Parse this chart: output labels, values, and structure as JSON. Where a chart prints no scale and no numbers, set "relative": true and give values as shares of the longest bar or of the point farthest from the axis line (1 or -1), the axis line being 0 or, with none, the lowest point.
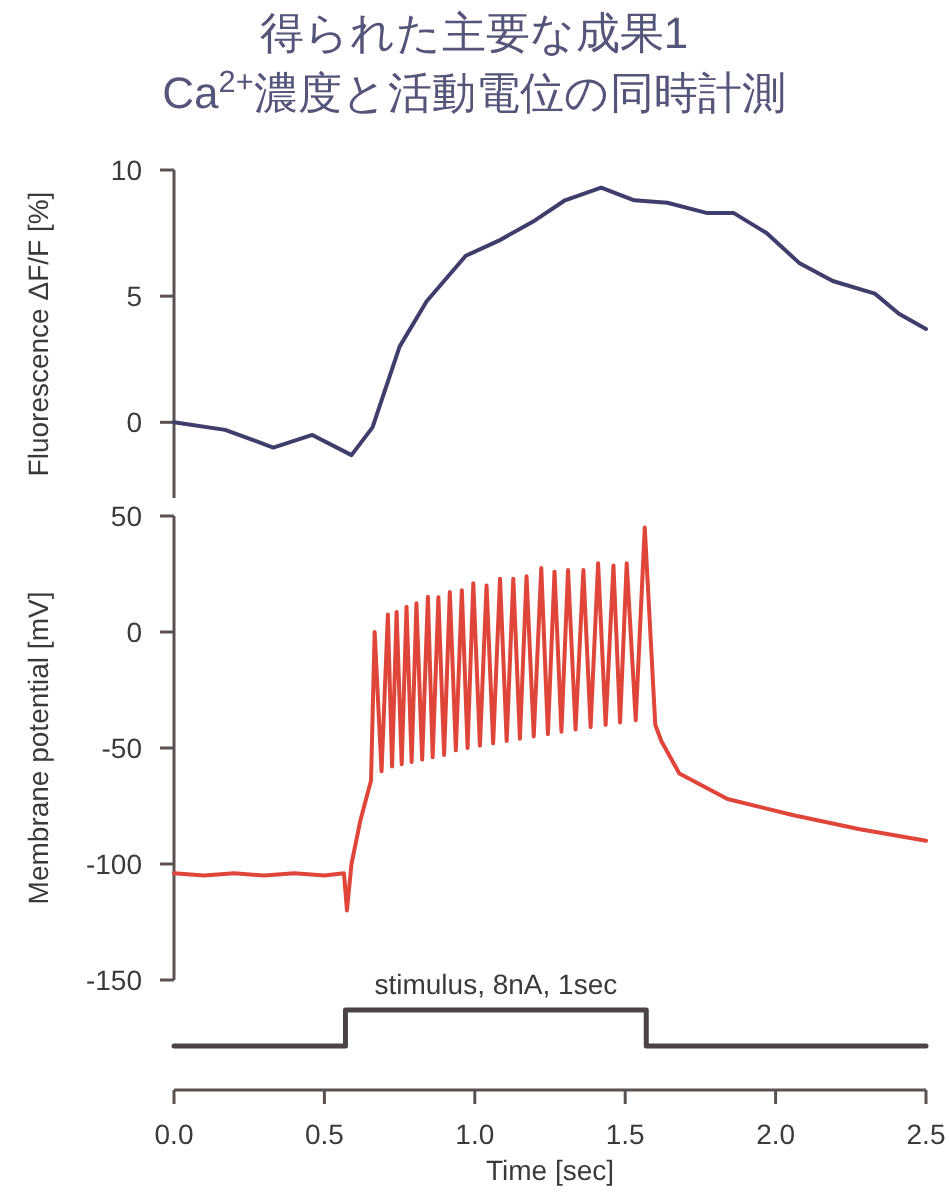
{
  "chart_data": [
    {
      "type": "line",
      "title": "得られた主要な成果1",
      "subtitle": "Ca$^{2+}$濃度と活動電位の同時計測",
      "ylabel": "Fluorescence ΔF/F [%]",
      "xlim": [
        0,
        2.5
      ],
      "ylim": [
        -3,
        10
      ],
      "yticks": [
        0,
        5,
        10
      ],
      "tick_labels": "y",
      "series": [
        {
          "color": "#3f3d6b",
          "x": [
            0,
            0.17,
            0.33,
            0.46,
            0.59,
            0.66,
            0.75,
            0.84,
            0.97,
            1.08,
            1.2,
            1.3,
            1.42,
            1.53,
            1.64,
            1.77,
            1.86,
            1.97,
            2.08,
            2.19,
            2.33,
            2.41,
            2.5
          ],
          "values": [
            0,
            -0.3,
            -1.0,
            -0.5,
            -1.3,
            -0.2,
            3.0,
            4.8,
            6.6,
            7.2,
            8.0,
            8.8,
            9.3,
            8.8,
            8.7,
            8.3,
            8.3,
            7.5,
            6.3,
            5.6,
            5.1,
            4.3,
            3.7
          ]
        }
      ]
    },
    {
      "type": "line",
      "ylabel": "Membrane potential [mV]",
      "xlim": [
        0,
        2.5
      ],
      "ylim": [
        -150,
        50
      ],
      "yticks": [
        -150,
        -100,
        -50,
        0,
        50
      ],
      "tick_labels": "y",
      "series": [
        {
          "color": "#e0453a",
          "x": [
            0,
            0.1,
            0.2,
            0.3,
            0.4,
            0.5,
            0.565,
            0.575,
            0.59,
            0.62,
            0.655,
            0.667,
            0.69,
            0.711,
            0.725,
            0.74,
            0.757,
            0.773,
            0.79,
            0.806,
            0.825,
            0.844,
            0.86,
            0.879,
            0.898,
            0.917,
            0.937,
            0.957,
            0.976,
            0.995,
            1.017,
            1.039,
            1.061,
            1.084,
            1.106,
            1.128,
            1.15,
            1.172,
            1.196,
            1.221,
            1.243,
            1.265,
            1.288,
            1.31,
            1.335,
            1.361,
            1.385,
            1.41,
            1.435,
            1.461,
            1.483,
            1.505,
            1.535,
            1.565,
            1.6,
            1.62,
            1.68,
            1.84,
            2.06,
            2.28,
            2.5
          ],
          "values": [
            -104,
            -105,
            -104,
            -105,
            -104,
            -105,
            -104,
            -120,
            -100,
            -81,
            -64,
            0,
            -60,
            7.5,
            -58,
            8.6,
            -57,
            10.9,
            -56,
            12.4,
            -55,
            15.2,
            -54,
            15,
            -53,
            17.2,
            -51,
            18,
            -50,
            21,
            -49,
            20,
            -48,
            23,
            -47,
            23,
            -46,
            24,
            -45,
            27.6,
            -44,
            26,
            -43,
            26.7,
            -42,
            26.7,
            -41,
            29.6,
            -40,
            28.7,
            -39,
            29.6,
            -38,
            45,
            -40,
            -47,
            -61,
            -72,
            -79,
            -85,
            -90
          ]
        }
      ]
    },
    {
      "type": "step",
      "relative": true,
      "xlabel": "Time [sec]",
      "xlim": [
        0,
        2.5
      ],
      "xticks": [
        {
          "value": 0,
          "label": "0.0"
        },
        {
          "value": 0.5,
          "label": "0.5"
        },
        {
          "value": 1,
          "label": "1.0"
        },
        {
          "value": 1.5,
          "label": "1.5"
        },
        {
          "value": 2,
          "label": "2.0"
        },
        {
          "value": 2.5,
          "label": "2.5"
        }
      ],
      "tick_labels": "x",
      "annotations": [
        "stimulus, 8nA, 1sec"
      ],
      "series": [
        {
          "color": "#4a4446",
          "x": [
            0,
            0.57,
            1.57,
            2.5
          ],
          "values": [
            0,
            1,
            0,
            0
          ]
        }
      ]
    }
  ]
}
